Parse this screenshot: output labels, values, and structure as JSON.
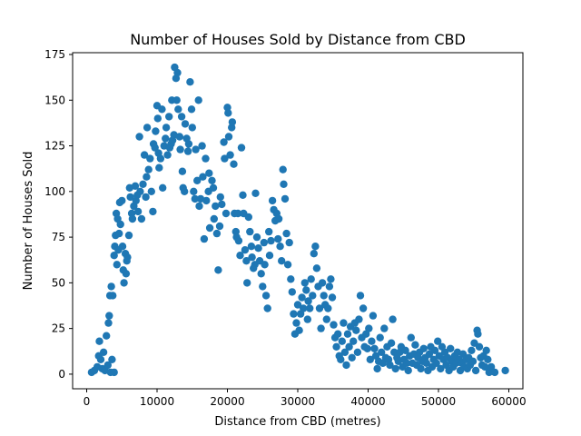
{
  "chart_data": {
    "type": "scatter",
    "title": "Number of Houses Sold by Distance from CBD",
    "xlabel": "Distance from CBD (metres)",
    "ylabel": "Number of Houses Sold",
    "xlim": [
      -2000,
      62000
    ],
    "ylim": [
      -8,
      176
    ],
    "xticks": [
      0,
      10000,
      20000,
      30000,
      40000,
      50000,
      60000
    ],
    "yticks": [
      0,
      25,
      50,
      75,
      100,
      125,
      150,
      175
    ],
    "grid": false,
    "legend": "none",
    "colors": {
      "points": "#1f77b4"
    },
    "points": [
      [
        700,
        1
      ],
      [
        1100,
        2
      ],
      [
        1500,
        4
      ],
      [
        1700,
        10
      ],
      [
        1800,
        18
      ],
      [
        2000,
        8
      ],
      [
        2200,
        3
      ],
      [
        2400,
        12
      ],
      [
        2600,
        2
      ],
      [
        2800,
        21
      ],
      [
        3000,
        5
      ],
      [
        3100,
        28
      ],
      [
        3200,
        32
      ],
      [
        3300,
        43
      ],
      [
        3400,
        1
      ],
      [
        3500,
        48
      ],
      [
        3600,
        8
      ],
      [
        3700,
        43
      ],
      [
        3900,
        1
      ],
      [
        3900,
        65
      ],
      [
        4000,
        70
      ],
      [
        4100,
        76
      ],
      [
        4200,
        88
      ],
      [
        4300,
        60
      ],
      [
        4400,
        85
      ],
      [
        4500,
        68
      ],
      [
        4600,
        77
      ],
      [
        4700,
        94
      ],
      [
        4800,
        82
      ],
      [
        5000,
        95
      ],
      [
        5100,
        70
      ],
      [
        5200,
        57
      ],
      [
        5300,
        50
      ],
      [
        5500,
        66
      ],
      [
        5600,
        55
      ],
      [
        5700,
        62
      ],
      [
        5800,
        64
      ],
      [
        6000,
        76
      ],
      [
        6100,
        102
      ],
      [
        6200,
        97
      ],
      [
        6400,
        88
      ],
      [
        6500,
        85
      ],
      [
        6700,
        92
      ],
      [
        6900,
        103
      ],
      [
        7000,
        95
      ],
      [
        7200,
        98
      ],
      [
        7300,
        89
      ],
      [
        7500,
        130
      ],
      [
        7600,
        100
      ],
      [
        7800,
        85
      ],
      [
        8000,
        104
      ],
      [
        8200,
        120
      ],
      [
        8400,
        97
      ],
      [
        8500,
        108
      ],
      [
        8600,
        135
      ],
      [
        8800,
        112
      ],
      [
        9000,
        118
      ],
      [
        9200,
        100
      ],
      [
        9400,
        89
      ],
      [
        9500,
        126
      ],
      [
        9700,
        124
      ],
      [
        9800,
        133
      ],
      [
        10000,
        147
      ],
      [
        10100,
        140
      ],
      [
        10200,
        121
      ],
      [
        10300,
        113
      ],
      [
        10500,
        118
      ],
      [
        10700,
        145
      ],
      [
        10800,
        102
      ],
      [
        11000,
        125
      ],
      [
        11200,
        129
      ],
      [
        11300,
        135
      ],
      [
        11500,
        120
      ],
      [
        11700,
        141
      ],
      [
        11800,
        124
      ],
      [
        12000,
        126
      ],
      [
        12100,
        150
      ],
      [
        12200,
        128
      ],
      [
        12400,
        131
      ],
      [
        12500,
        168
      ],
      [
        12700,
        162
      ],
      [
        12800,
        150
      ],
      [
        12900,
        165
      ],
      [
        13000,
        145
      ],
      [
        13200,
        130
      ],
      [
        13300,
        123
      ],
      [
        13500,
        141
      ],
      [
        13600,
        111
      ],
      [
        13700,
        102
      ],
      [
        13900,
        100
      ],
      [
        14000,
        137
      ],
      [
        14200,
        129
      ],
      [
        14400,
        122
      ],
      [
        14500,
        126
      ],
      [
        14700,
        160
      ],
      [
        14900,
        145
      ],
      [
        15000,
        135
      ],
      [
        15200,
        100
      ],
      [
        15400,
        96
      ],
      [
        15500,
        123
      ],
      [
        15700,
        106
      ],
      [
        15900,
        150
      ],
      [
        16000,
        92
      ],
      [
        16200,
        96
      ],
      [
        16400,
        125
      ],
      [
        16500,
        108
      ],
      [
        16700,
        74
      ],
      [
        16900,
        118
      ],
      [
        17000,
        95
      ],
      [
        17300,
        100
      ],
      [
        17400,
        110
      ],
      [
        17500,
        80
      ],
      [
        17800,
        106
      ],
      [
        18000,
        102
      ],
      [
        18100,
        85
      ],
      [
        18300,
        92
      ],
      [
        18500,
        77
      ],
      [
        18700,
        57
      ],
      [
        18900,
        81
      ],
      [
        19000,
        97
      ],
      [
        19200,
        93
      ],
      [
        19500,
        127
      ],
      [
        19600,
        118
      ],
      [
        19800,
        88
      ],
      [
        20000,
        146
      ],
      [
        20100,
        143
      ],
      [
        20200,
        130
      ],
      [
        20400,
        120
      ],
      [
        20600,
        135
      ],
      [
        20700,
        138
      ],
      [
        20900,
        115
      ],
      [
        21000,
        88
      ],
      [
        21200,
        78
      ],
      [
        21300,
        75
      ],
      [
        21500,
        88
      ],
      [
        21600,
        73
      ],
      [
        21800,
        65
      ],
      [
        22000,
        124
      ],
      [
        22200,
        98
      ],
      [
        22300,
        88
      ],
      [
        22500,
        68
      ],
      [
        22700,
        62
      ],
      [
        22800,
        50
      ],
      [
        23000,
        86
      ],
      [
        23200,
        78
      ],
      [
        23400,
        70
      ],
      [
        23500,
        64
      ],
      [
        23700,
        58
      ],
      [
        23900,
        60
      ],
      [
        24000,
        99
      ],
      [
        24200,
        75
      ],
      [
        24400,
        69
      ],
      [
        24600,
        62
      ],
      [
        24800,
        55
      ],
      [
        25000,
        48
      ],
      [
        25200,
        72
      ],
      [
        25300,
        60
      ],
      [
        25500,
        43
      ],
      [
        25700,
        36
      ],
      [
        25900,
        78
      ],
      [
        26000,
        65
      ],
      [
        26200,
        73
      ],
      [
        26400,
        95
      ],
      [
        26600,
        90
      ],
      [
        26800,
        84
      ],
      [
        27000,
        88
      ],
      [
        27200,
        74
      ],
      [
        27300,
        85
      ],
      [
        27500,
        70
      ],
      [
        27700,
        62
      ],
      [
        27900,
        112
      ],
      [
        28000,
        104
      ],
      [
        28200,
        96
      ],
      [
        28400,
        77
      ],
      [
        28600,
        60
      ],
      [
        28800,
        72
      ],
      [
        29000,
        52
      ],
      [
        29200,
        45
      ],
      [
        29400,
        33
      ],
      [
        29600,
        22
      ],
      [
        29800,
        28
      ],
      [
        30000,
        38
      ],
      [
        30200,
        24
      ],
      [
        30400,
        33
      ],
      [
        30600,
        42
      ],
      [
        30800,
        36
      ],
      [
        31000,
        50
      ],
      [
        31200,
        46
      ],
      [
        31400,
        30
      ],
      [
        31500,
        40
      ],
      [
        31700,
        36
      ],
      [
        31900,
        52
      ],
      [
        32100,
        43
      ],
      [
        32300,
        66
      ],
      [
        32500,
        70
      ],
      [
        32700,
        58
      ],
      [
        32900,
        48
      ],
      [
        33100,
        36
      ],
      [
        33300,
        25
      ],
      [
        33500,
        50
      ],
      [
        33700,
        43
      ],
      [
        33900,
        38
      ],
      [
        34100,
        30
      ],
      [
        34300,
        36
      ],
      [
        34500,
        48
      ],
      [
        34700,
        52
      ],
      [
        34900,
        42
      ],
      [
        35100,
        27
      ],
      [
        35300,
        20
      ],
      [
        35500,
        15
      ],
      [
        35700,
        22
      ],
      [
        35900,
        10
      ],
      [
        36100,
        8
      ],
      [
        36300,
        18
      ],
      [
        36500,
        28
      ],
      [
        36700,
        12
      ],
      [
        36900,
        5
      ],
      [
        37100,
        22
      ],
      [
        37300,
        15
      ],
      [
        37500,
        26
      ],
      [
        37700,
        9
      ],
      [
        37900,
        18
      ],
      [
        38100,
        28
      ],
      [
        38300,
        24
      ],
      [
        38500,
        12
      ],
      [
        38700,
        30
      ],
      [
        38900,
        43
      ],
      [
        39100,
        20
      ],
      [
        39300,
        36
      ],
      [
        39500,
        15
      ],
      [
        39700,
        22
      ],
      [
        39900,
        14
      ],
      [
        40100,
        25
      ],
      [
        40300,
        8
      ],
      [
        40500,
        18
      ],
      [
        40700,
        32
      ],
      [
        40900,
        14
      ],
      [
        41100,
        10
      ],
      [
        41300,
        3
      ],
      [
        41500,
        7
      ],
      [
        41700,
        20
      ],
      [
        41900,
        12
      ],
      [
        42100,
        6
      ],
      [
        42300,
        25
      ],
      [
        42500,
        9
      ],
      [
        42700,
        15
      ],
      [
        42900,
        8
      ],
      [
        43100,
        5
      ],
      [
        43300,
        17
      ],
      [
        43500,
        30
      ],
      [
        43700,
        12
      ],
      [
        43900,
        3
      ],
      [
        44100,
        9
      ],
      [
        44300,
        7
      ],
      [
        44500,
        12
      ],
      [
        44700,
        15
      ],
      [
        44900,
        4
      ],
      [
        45100,
        8
      ],
      [
        45300,
        13
      ],
      [
        45500,
        6
      ],
      [
        45700,
        2
      ],
      [
        45900,
        10
      ],
      [
        46100,
        20
      ],
      [
        46300,
        6
      ],
      [
        46500,
        11
      ],
      [
        46700,
        16
      ],
      [
        46900,
        5
      ],
      [
        47100,
        9
      ],
      [
        47300,
        12
      ],
      [
        47500,
        3
      ],
      [
        47700,
        7
      ],
      [
        47900,
        14
      ],
      [
        48100,
        9
      ],
      [
        48300,
        6
      ],
      [
        48500,
        2
      ],
      [
        48700,
        11
      ],
      [
        48900,
        15
      ],
      [
        49100,
        4
      ],
      [
        49300,
        8
      ],
      [
        49500,
        13
      ],
      [
        49700,
        6
      ],
      [
        49900,
        18
      ],
      [
        50100,
        10
      ],
      [
        50300,
        3
      ],
      [
        50500,
        15
      ],
      [
        50700,
        8
      ],
      [
        50900,
        12
      ],
      [
        51100,
        5
      ],
      [
        51300,
        9
      ],
      [
        51500,
        2
      ],
      [
        51700,
        14
      ],
      [
        51900,
        7
      ],
      [
        52100,
        4
      ],
      [
        52300,
        10
      ],
      [
        52500,
        6
      ],
      [
        52700,
        12
      ],
      [
        52900,
        8
      ],
      [
        53100,
        2
      ],
      [
        53300,
        6
      ],
      [
        53500,
        11
      ],
      [
        53700,
        4
      ],
      [
        53900,
        8
      ],
      [
        54100,
        3
      ],
      [
        54300,
        9
      ],
      [
        54500,
        5
      ],
      [
        54700,
        13
      ],
      [
        54900,
        7
      ],
      [
        55100,
        17
      ],
      [
        55300,
        2
      ],
      [
        55500,
        24
      ],
      [
        55600,
        22
      ],
      [
        55800,
        15
      ],
      [
        56000,
        9
      ],
      [
        56200,
        5
      ],
      [
        56400,
        10
      ],
      [
        56600,
        4
      ],
      [
        56800,
        13
      ],
      [
        57000,
        8
      ],
      [
        57200,
        1
      ],
      [
        57500,
        4
      ],
      [
        58000,
        1
      ],
      [
        59500,
        2
      ]
    ]
  }
}
